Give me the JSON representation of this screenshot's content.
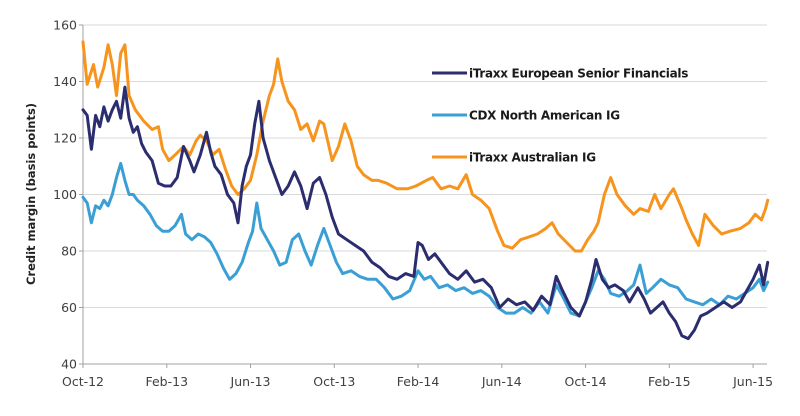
{
  "chart_data": {
    "type": "line",
    "title": "",
    "xlabel": "",
    "ylabel": "Credit margin (basis points)",
    "ylim": [
      40,
      160
    ],
    "yticks": [
      40,
      60,
      80,
      100,
      120,
      140,
      160
    ],
    "x_unit": "months since Oct-2012",
    "xlim": [
      0,
      32.7
    ],
    "xticks": [
      {
        "value": 0,
        "label": "Oct-12"
      },
      {
        "value": 4,
        "label": "Feb-13"
      },
      {
        "value": 8,
        "label": "Jun-13"
      },
      {
        "value": 12,
        "label": "Oct-13"
      },
      {
        "value": 16,
        "label": "Feb-14"
      },
      {
        "value": 20,
        "label": "Jun-14"
      },
      {
        "value": 24,
        "label": "Oct-14"
      },
      {
        "value": 28,
        "label": "Feb-15"
      },
      {
        "value": 32,
        "label": "Jun-15"
      }
    ],
    "grid": true,
    "legend_position": "top-right",
    "series": [
      {
        "name": "iTraxx European Senior Financials",
        "color": "#2b2d6e",
        "points": [
          [
            0,
            130
          ],
          [
            0.2,
            128
          ],
          [
            0.4,
            116
          ],
          [
            0.6,
            128
          ],
          [
            0.8,
            124
          ],
          [
            1.0,
            131
          ],
          [
            1.2,
            126
          ],
          [
            1.4,
            130
          ],
          [
            1.6,
            133
          ],
          [
            1.8,
            127
          ],
          [
            2.0,
            138
          ],
          [
            2.2,
            127
          ],
          [
            2.4,
            122
          ],
          [
            2.6,
            124
          ],
          [
            2.8,
            118
          ],
          [
            3.0,
            115
          ],
          [
            3.3,
            112
          ],
          [
            3.6,
            104
          ],
          [
            3.9,
            103
          ],
          [
            4.2,
            103
          ],
          [
            4.5,
            106
          ],
          [
            4.8,
            117
          ],
          [
            5.1,
            112
          ],
          [
            5.3,
            108
          ],
          [
            5.6,
            114
          ],
          [
            5.9,
            122
          ],
          [
            6.1,
            115
          ],
          [
            6.3,
            110
          ],
          [
            6.6,
            107
          ],
          [
            6.9,
            100
          ],
          [
            7.2,
            97
          ],
          [
            7.4,
            90
          ],
          [
            7.6,
            103
          ],
          [
            7.8,
            110
          ],
          [
            8.0,
            114
          ],
          [
            8.2,
            125
          ],
          [
            8.4,
            133
          ],
          [
            8.6,
            120
          ],
          [
            8.9,
            112
          ],
          [
            9.2,
            106
          ],
          [
            9.5,
            100
          ],
          [
            9.8,
            103
          ],
          [
            10.1,
            108
          ],
          [
            10.4,
            103
          ],
          [
            10.7,
            95
          ],
          [
            11.0,
            104
          ],
          [
            11.3,
            106
          ],
          [
            11.6,
            100
          ],
          [
            11.9,
            92
          ],
          [
            12.2,
            86
          ],
          [
            12.6,
            84
          ],
          [
            13.0,
            82
          ],
          [
            13.4,
            80
          ],
          [
            13.8,
            76
          ],
          [
            14.2,
            74
          ],
          [
            14.6,
            71
          ],
          [
            15.0,
            70
          ],
          [
            15.4,
            72
          ],
          [
            15.8,
            71
          ],
          [
            16.0,
            83
          ],
          [
            16.2,
            82
          ],
          [
            16.5,
            77
          ],
          [
            16.8,
            79
          ],
          [
            17.1,
            76
          ],
          [
            17.5,
            72
          ],
          [
            17.9,
            70
          ],
          [
            18.3,
            73
          ],
          [
            18.7,
            69
          ],
          [
            19.1,
            70
          ],
          [
            19.5,
            67
          ],
          [
            19.9,
            60
          ],
          [
            20.3,
            63
          ],
          [
            20.7,
            61
          ],
          [
            21.1,
            62
          ],
          [
            21.5,
            59
          ],
          [
            21.9,
            64
          ],
          [
            22.3,
            61
          ],
          [
            22.6,
            71
          ],
          [
            22.9,
            66
          ],
          [
            23.3,
            60
          ],
          [
            23.7,
            57
          ],
          [
            24.0,
            62
          ],
          [
            24.3,
            70
          ],
          [
            24.5,
            77
          ],
          [
            24.8,
            70
          ],
          [
            25.1,
            67
          ],
          [
            25.4,
            68
          ],
          [
            25.8,
            66
          ],
          [
            26.1,
            62
          ],
          [
            26.5,
            67
          ],
          [
            26.8,
            63
          ],
          [
            27.1,
            58
          ],
          [
            27.4,
            60
          ],
          [
            27.7,
            62
          ],
          [
            28.0,
            58
          ],
          [
            28.3,
            55
          ],
          [
            28.6,
            50
          ],
          [
            28.9,
            49
          ],
          [
            29.2,
            52
          ],
          [
            29.5,
            57
          ],
          [
            29.8,
            58
          ],
          [
            30.2,
            60
          ],
          [
            30.6,
            62
          ],
          [
            31.0,
            60
          ],
          [
            31.4,
            62
          ],
          [
            31.7,
            66
          ],
          [
            32.0,
            70
          ],
          [
            32.3,
            75
          ],
          [
            32.5,
            68
          ],
          [
            32.7,
            76
          ]
        ]
      },
      {
        "name": "CDX North American IG",
        "color": "#3a9fd5",
        "points": [
          [
            0,
            99
          ],
          [
            0.2,
            97
          ],
          [
            0.4,
            90
          ],
          [
            0.6,
            96
          ],
          [
            0.8,
            95
          ],
          [
            1.0,
            98
          ],
          [
            1.2,
            96
          ],
          [
            1.4,
            100
          ],
          [
            1.6,
            106
          ],
          [
            1.8,
            111
          ],
          [
            2.0,
            105
          ],
          [
            2.2,
            100
          ],
          [
            2.4,
            100
          ],
          [
            2.6,
            98
          ],
          [
            2.9,
            96
          ],
          [
            3.2,
            93
          ],
          [
            3.5,
            89
          ],
          [
            3.8,
            87
          ],
          [
            4.1,
            87
          ],
          [
            4.4,
            89
          ],
          [
            4.7,
            93
          ],
          [
            4.9,
            86
          ],
          [
            5.2,
            84
          ],
          [
            5.5,
            86
          ],
          [
            5.8,
            85
          ],
          [
            6.1,
            83
          ],
          [
            6.4,
            79
          ],
          [
            6.7,
            74
          ],
          [
            7.0,
            70
          ],
          [
            7.3,
            72
          ],
          [
            7.6,
            76
          ],
          [
            7.9,
            83
          ],
          [
            8.1,
            87
          ],
          [
            8.3,
            97
          ],
          [
            8.5,
            88
          ],
          [
            8.8,
            84
          ],
          [
            9.1,
            80
          ],
          [
            9.4,
            75
          ],
          [
            9.7,
            76
          ],
          [
            10.0,
            84
          ],
          [
            10.3,
            86
          ],
          [
            10.6,
            80
          ],
          [
            10.9,
            75
          ],
          [
            11.2,
            82
          ],
          [
            11.5,
            88
          ],
          [
            11.8,
            82
          ],
          [
            12.1,
            76
          ],
          [
            12.4,
            72
          ],
          [
            12.8,
            73
          ],
          [
            13.2,
            71
          ],
          [
            13.6,
            70
          ],
          [
            14.0,
            70
          ],
          [
            14.4,
            67
          ],
          [
            14.8,
            63
          ],
          [
            15.2,
            64
          ],
          [
            15.6,
            66
          ],
          [
            16.0,
            73
          ],
          [
            16.3,
            70
          ],
          [
            16.6,
            71
          ],
          [
            17.0,
            67
          ],
          [
            17.4,
            68
          ],
          [
            17.8,
            66
          ],
          [
            18.2,
            67
          ],
          [
            18.6,
            65
          ],
          [
            19.0,
            66
          ],
          [
            19.4,
            64
          ],
          [
            19.8,
            60
          ],
          [
            20.2,
            58
          ],
          [
            20.6,
            58
          ],
          [
            21.0,
            60
          ],
          [
            21.4,
            58
          ],
          [
            21.8,
            62
          ],
          [
            22.2,
            58
          ],
          [
            22.6,
            68
          ],
          [
            22.9,
            64
          ],
          [
            23.3,
            58
          ],
          [
            23.7,
            57
          ],
          [
            24.0,
            62
          ],
          [
            24.3,
            67
          ],
          [
            24.6,
            73
          ],
          [
            24.9,
            70
          ],
          [
            25.2,
            65
          ],
          [
            25.6,
            64
          ],
          [
            26.0,
            66
          ],
          [
            26.3,
            68
          ],
          [
            26.6,
            75
          ],
          [
            26.9,
            65
          ],
          [
            27.2,
            67
          ],
          [
            27.6,
            70
          ],
          [
            28.0,
            68
          ],
          [
            28.4,
            67
          ],
          [
            28.8,
            63
          ],
          [
            29.2,
            62
          ],
          [
            29.6,
            61
          ],
          [
            30.0,
            63
          ],
          [
            30.4,
            61
          ],
          [
            30.8,
            64
          ],
          [
            31.2,
            63
          ],
          [
            31.6,
            65
          ],
          [
            32.0,
            67
          ],
          [
            32.3,
            70
          ],
          [
            32.5,
            66
          ],
          [
            32.7,
            69
          ]
        ]
      },
      {
        "name": "iTraxx Australian IG",
        "color": "#f7941d",
        "points": [
          [
            0,
            154
          ],
          [
            0.2,
            139
          ],
          [
            0.5,
            146
          ],
          [
            0.7,
            138
          ],
          [
            1.0,
            145
          ],
          [
            1.2,
            153
          ],
          [
            1.4,
            146
          ],
          [
            1.6,
            135
          ],
          [
            1.8,
            150
          ],
          [
            2.0,
            153
          ],
          [
            2.2,
            135
          ],
          [
            2.5,
            130
          ],
          [
            2.9,
            126
          ],
          [
            3.3,
            123
          ],
          [
            3.6,
            124
          ],
          [
            3.8,
            116
          ],
          [
            4.1,
            112
          ],
          [
            4.4,
            114
          ],
          [
            4.8,
            117
          ],
          [
            5.1,
            114
          ],
          [
            5.4,
            119
          ],
          [
            5.6,
            121
          ],
          [
            5.9,
            119
          ],
          [
            6.2,
            114
          ],
          [
            6.5,
            116
          ],
          [
            6.8,
            109
          ],
          [
            7.1,
            103
          ],
          [
            7.4,
            100
          ],
          [
            7.7,
            102
          ],
          [
            8.0,
            105
          ],
          [
            8.3,
            114
          ],
          [
            8.6,
            126
          ],
          [
            8.9,
            135
          ],
          [
            9.1,
            139
          ],
          [
            9.3,
            148
          ],
          [
            9.5,
            140
          ],
          [
            9.8,
            133
          ],
          [
            10.1,
            130
          ],
          [
            10.4,
            123
          ],
          [
            10.7,
            125
          ],
          [
            11.0,
            119
          ],
          [
            11.3,
            126
          ],
          [
            11.5,
            125
          ],
          [
            11.9,
            112
          ],
          [
            12.2,
            117
          ],
          [
            12.5,
            125
          ],
          [
            12.8,
            119
          ],
          [
            13.1,
            110
          ],
          [
            13.4,
            107
          ],
          [
            13.8,
            105
          ],
          [
            14.1,
            105
          ],
          [
            14.5,
            104
          ],
          [
            15.0,
            102
          ],
          [
            15.5,
            102
          ],
          [
            15.9,
            103
          ],
          [
            16.4,
            105
          ],
          [
            16.7,
            106
          ],
          [
            17.1,
            102
          ],
          [
            17.5,
            103
          ],
          [
            17.9,
            102
          ],
          [
            18.3,
            107
          ],
          [
            18.6,
            100
          ],
          [
            19.0,
            98
          ],
          [
            19.4,
            95
          ],
          [
            19.8,
            87
          ],
          [
            20.1,
            82
          ],
          [
            20.5,
            81
          ],
          [
            20.9,
            84
          ],
          [
            21.3,
            85
          ],
          [
            21.7,
            86
          ],
          [
            22.1,
            88
          ],
          [
            22.4,
            90
          ],
          [
            22.7,
            86
          ],
          [
            23.1,
            83
          ],
          [
            23.5,
            80
          ],
          [
            23.8,
            80
          ],
          [
            24.1,
            84
          ],
          [
            24.4,
            87
          ],
          [
            24.6,
            90
          ],
          [
            24.9,
            100
          ],
          [
            25.2,
            106
          ],
          [
            25.5,
            100
          ],
          [
            25.9,
            96
          ],
          [
            26.3,
            93
          ],
          [
            26.6,
            95
          ],
          [
            27.0,
            94
          ],
          [
            27.3,
            100
          ],
          [
            27.6,
            95
          ],
          [
            28.0,
            100
          ],
          [
            28.2,
            102
          ],
          [
            28.6,
            95
          ],
          [
            28.8,
            91
          ],
          [
            29.1,
            86
          ],
          [
            29.4,
            82
          ],
          [
            29.7,
            93
          ],
          [
            30.1,
            89
          ],
          [
            30.5,
            86
          ],
          [
            30.9,
            87
          ],
          [
            31.4,
            88
          ],
          [
            31.8,
            90
          ],
          [
            32.1,
            93
          ],
          [
            32.4,
            91
          ],
          [
            32.6,
            95
          ],
          [
            32.7,
            98
          ]
        ]
      }
    ]
  }
}
